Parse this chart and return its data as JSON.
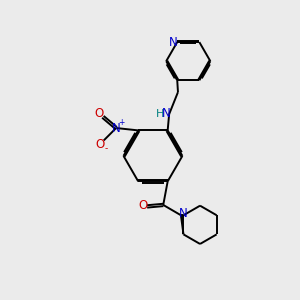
{
  "bg_color": "#ebebeb",
  "bond_color": "#000000",
  "N_color": "#0000cc",
  "O_color": "#cc0000",
  "H_color": "#008080",
  "font_size": 8.5,
  "lw": 1.4,
  "xlim": [
    0,
    10
  ],
  "ylim": [
    0,
    10
  ]
}
